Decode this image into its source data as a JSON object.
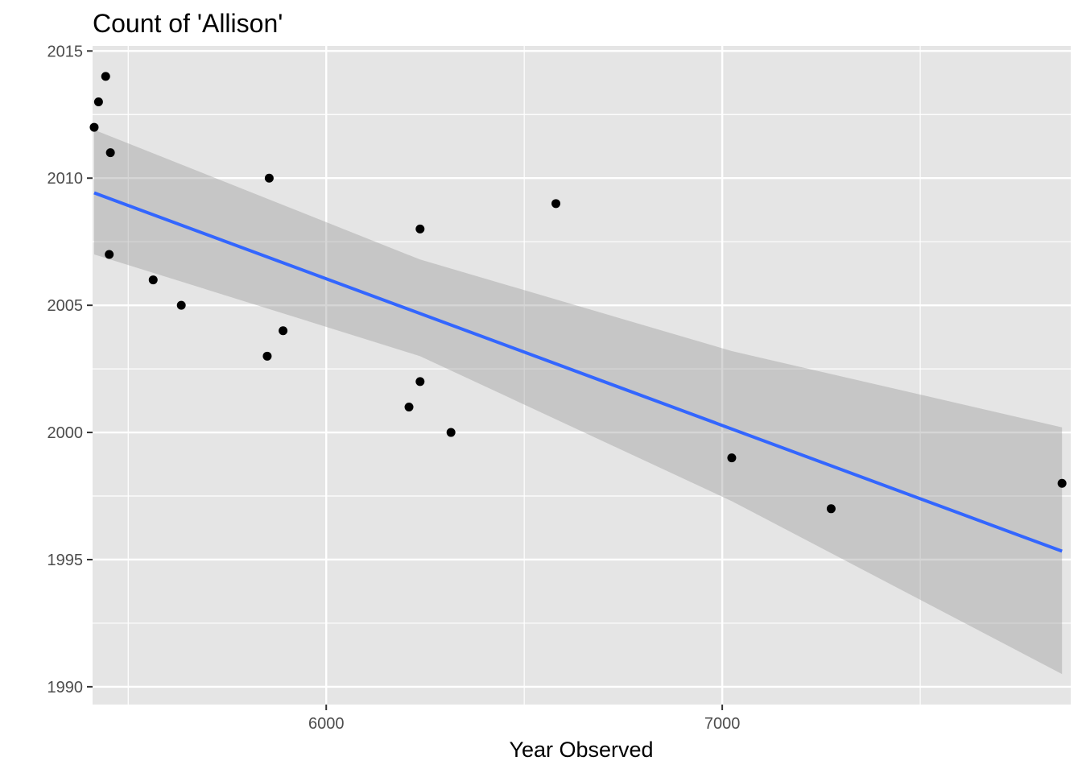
{
  "chart_data": {
    "type": "scatter",
    "title": "Count of 'Allison'",
    "xlabel": "Year Observed",
    "ylabel": "",
    "xlim": [
      5410,
      7880
    ],
    "ylim": [
      1989.3,
      2015.2
    ],
    "x_ticks": [
      6000,
      7000
    ],
    "x_minor_ticks": [
      5500,
      6500,
      7500
    ],
    "y_ticks": [
      1990,
      1995,
      2000,
      2005,
      2010,
      2015
    ],
    "y_minor_ticks": [
      1992.5,
      1997.5,
      2002.5,
      2007.5,
      2012.5
    ],
    "grid": true,
    "legend": "none",
    "colors": {
      "panel": "#e5e5e5",
      "grid": "#ffffff",
      "points": "#000000",
      "trend_line": "#3366ff",
      "confidence_band": "#999999"
    },
    "points": [
      {
        "x": 5414,
        "y": 2012
      },
      {
        "x": 5425,
        "y": 2013
      },
      {
        "x": 5443,
        "y": 2014
      },
      {
        "x": 5455,
        "y": 2011
      },
      {
        "x": 5452,
        "y": 2007
      },
      {
        "x": 5563,
        "y": 2006
      },
      {
        "x": 5634,
        "y": 2005
      },
      {
        "x": 5856,
        "y": 2010
      },
      {
        "x": 5851,
        "y": 2003
      },
      {
        "x": 5891,
        "y": 2004
      },
      {
        "x": 6209,
        "y": 2001
      },
      {
        "x": 6237,
        "y": 2008
      },
      {
        "x": 6237,
        "y": 2002
      },
      {
        "x": 6315,
        "y": 2000
      },
      {
        "x": 6580,
        "y": 2009
      },
      {
        "x": 7024,
        "y": 1999
      },
      {
        "x": 7275,
        "y": 1997
      },
      {
        "x": 7858,
        "y": 1998
      }
    ],
    "trend_line": {
      "x": [
        5414,
        7858
      ],
      "y": [
        2009.42,
        1995.33
      ]
    },
    "confidence_band": {
      "x": [
        5414,
        6237,
        7024,
        7858
      ],
      "upper": [
        2011.9,
        2006.8,
        2003.2,
        2000.2
      ],
      "lower": [
        2007.0,
        2003.0,
        1997.3,
        1990.5
      ]
    }
  }
}
